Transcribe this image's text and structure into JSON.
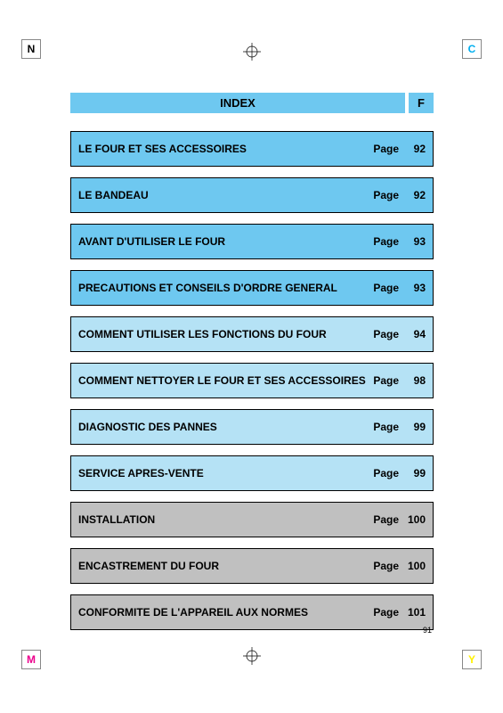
{
  "crop_marks": {
    "n": "N",
    "c": "C",
    "m": "M",
    "y": "Y"
  },
  "header": {
    "index_label": "INDEX",
    "lang_label": "F",
    "bg": "#6ec8f0"
  },
  "entries": [
    {
      "title": "LE FOUR ET SES ACCESSOIRES",
      "page_label": "Page",
      "page_num": "92",
      "bg": "#6ec8f0"
    },
    {
      "title": "LE BANDEAU",
      "page_label": "Page",
      "page_num": "92",
      "bg": "#6ec8f0"
    },
    {
      "title": "AVANT D'UTILISER LE FOUR",
      "page_label": "Page",
      "page_num": "93",
      "bg": "#6ec8f0"
    },
    {
      "title": "PRECAUTIONS ET CONSEILS D'ORDRE GENERAL",
      "page_label": "Page",
      "page_num": "93",
      "bg": "#6ec8f0"
    },
    {
      "title": "COMMENT UTILISER LES FONCTIONS DU FOUR",
      "page_label": "Page",
      "page_num": "94",
      "bg": "#b5e2f5"
    },
    {
      "title": "COMMENT NETTOYER LE FOUR ET SES ACCESSOIRES",
      "page_label": "Page",
      "page_num": "98",
      "bg": "#b5e2f5"
    },
    {
      "title": "DIAGNOSTIC DES PANNES",
      "page_label": "Page",
      "page_num": "99",
      "bg": "#b5e2f5"
    },
    {
      "title": "SERVICE APRES-VENTE",
      "page_label": "Page",
      "page_num": "99",
      "bg": "#b5e2f5"
    },
    {
      "title": "INSTALLATION",
      "page_label": "Page",
      "page_num": "100",
      "bg": "#c0c0c0"
    },
    {
      "title": "ENCASTREMENT DU FOUR",
      "page_label": "Page",
      "page_num": "100",
      "bg": "#c0c0c0"
    },
    {
      "title": "CONFORMITE DE L'APPAREIL AUX NORMES",
      "page_label": "Page",
      "page_num": "101",
      "bg": "#c0c0c0"
    }
  ],
  "footer_page_num": "91"
}
